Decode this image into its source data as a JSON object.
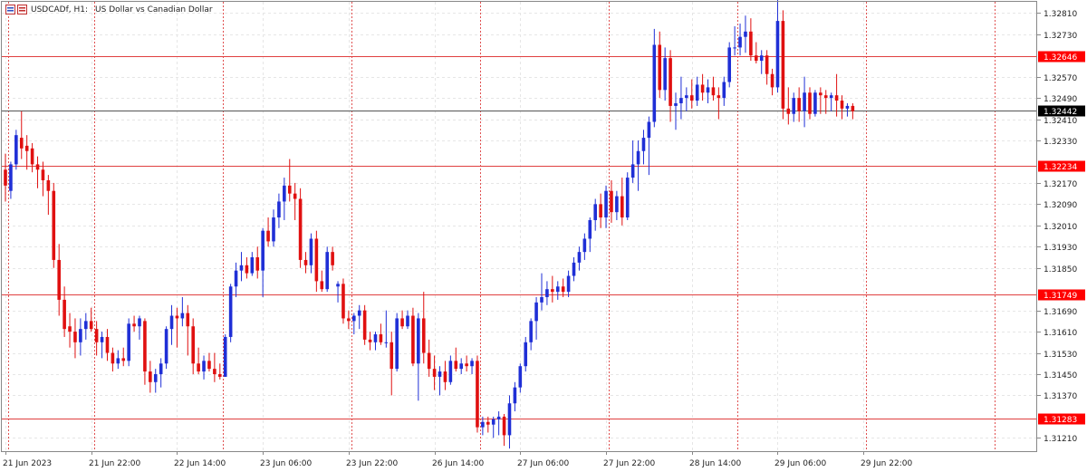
{
  "window": {
    "symbol_timeframe": "USDCADf, H1:",
    "description": "US Dollar vs Canadian Dollar"
  },
  "colors": {
    "bull": "#1f2fd6",
    "bear": "#e01010",
    "background": "#ffffff",
    "grid": "#e6e6e6",
    "frame": "#888888",
    "separator": "#e05050",
    "level_line": "#e04040",
    "level_label_bg": "#ff0000",
    "price_line": "#000000",
    "price_label_bg": "#000000",
    "text": "#222222"
  },
  "icons": {
    "chart_window": "chart-window-icon"
  },
  "chart_data": {
    "type": "candlestick",
    "title": "USDCADf, H1:  US Dollar vs Canadian Dollar",
    "ylim": [
      1.3116,
      1.32852
    ],
    "y_ticks": [
      "1.32810",
      "1.32730",
      "1.32570",
      "1.32490",
      "1.32410",
      "1.32330",
      "1.32170",
      "1.32090",
      "1.32010",
      "1.31930",
      "1.31850",
      "1.31690",
      "1.31610",
      "1.31530",
      "1.31450",
      "1.31370",
      "1.31210"
    ],
    "x_labels": [
      {
        "bar": 0,
        "label": "21 Jun 2023"
      },
      {
        "bar": 16,
        "label": "21 Jun 22:00"
      },
      {
        "bar": 32,
        "label": "22 Jun 14:00"
      },
      {
        "bar": 48,
        "label": "23 Jun 06:00"
      },
      {
        "bar": 64,
        "label": "23 Jun 22:00"
      },
      {
        "bar": 80,
        "label": "26 Jun 14:00"
      },
      {
        "bar": 96,
        "label": "27 Jun 06:00"
      },
      {
        "bar": 112,
        "label": "27 Jun 22:00"
      },
      {
        "bar": 128,
        "label": "28 Jun 14:00"
      },
      {
        "bar": 144,
        "label": "29 Jun 06:00"
      },
      {
        "bar": 160,
        "label": "29 Jun 22:00"
      }
    ],
    "separators_at_bar": [
      1,
      17,
      41,
      65,
      89,
      113,
      137,
      161,
      185
    ],
    "horizontal_levels": [
      {
        "price": 1.32646,
        "label": "1.32646"
      },
      {
        "price": 1.32234,
        "label": "1.32234"
      },
      {
        "price": 1.31749,
        "label": "1.31749"
      },
      {
        "price": 1.31283,
        "label": "1.31283"
      }
    ],
    "current_price": {
      "price": 1.32442,
      "label": "1.32442"
    },
    "candles": [
      {
        "o": 1.3222,
        "h": 1.3228,
        "l": 1.321,
        "c": 1.3216
      },
      {
        "o": 1.3214,
        "h": 1.3225,
        "l": 1.3211,
        "c": 1.3224
      },
      {
        "o": 1.3224,
        "h": 1.3237,
        "l": 1.3222,
        "c": 1.3235
      },
      {
        "o": 1.3234,
        "h": 1.3244,
        "l": 1.3226,
        "c": 1.323
      },
      {
        "o": 1.3231,
        "h": 1.3235,
        "l": 1.3222,
        "c": 1.3229
      },
      {
        "o": 1.323,
        "h": 1.3232,
        "l": 1.3221,
        "c": 1.3224
      },
      {
        "o": 1.3224,
        "h": 1.3227,
        "l": 1.3215,
        "c": 1.3222
      },
      {
        "o": 1.3222,
        "h": 1.3225,
        "l": 1.3212,
        "c": 1.3218
      },
      {
        "o": 1.3218,
        "h": 1.322,
        "l": 1.3205,
        "c": 1.3214
      },
      {
        "o": 1.3214,
        "h": 1.3217,
        "l": 1.3185,
        "c": 1.3188
      },
      {
        "o": 1.3188,
        "h": 1.3194,
        "l": 1.3167,
        "c": 1.3173
      },
      {
        "o": 1.3173,
        "h": 1.3178,
        "l": 1.3159,
        "c": 1.3162
      },
      {
        "o": 1.3163,
        "h": 1.3168,
        "l": 1.3155,
        "c": 1.3161
      },
      {
        "o": 1.3161,
        "h": 1.3166,
        "l": 1.3151,
        "c": 1.3157
      },
      {
        "o": 1.3157,
        "h": 1.3166,
        "l": 1.3152,
        "c": 1.3162
      },
      {
        "o": 1.3162,
        "h": 1.3168,
        "l": 1.3158,
        "c": 1.3165
      },
      {
        "o": 1.3165,
        "h": 1.317,
        "l": 1.3161,
        "c": 1.3162
      },
      {
        "o": 1.3162,
        "h": 1.3165,
        "l": 1.3152,
        "c": 1.3157
      },
      {
        "o": 1.3157,
        "h": 1.3161,
        "l": 1.3151,
        "c": 1.3159
      },
      {
        "o": 1.3159,
        "h": 1.3162,
        "l": 1.315,
        "c": 1.3153
      },
      {
        "o": 1.3153,
        "h": 1.3155,
        "l": 1.3146,
        "c": 1.3149
      },
      {
        "o": 1.3149,
        "h": 1.3154,
        "l": 1.3147,
        "c": 1.3151
      },
      {
        "o": 1.3151,
        "h": 1.3155,
        "l": 1.3148,
        "c": 1.315
      },
      {
        "o": 1.315,
        "h": 1.3166,
        "l": 1.3148,
        "c": 1.3164
      },
      {
        "o": 1.3164,
        "h": 1.3167,
        "l": 1.3161,
        "c": 1.3163
      },
      {
        "o": 1.3163,
        "h": 1.3167,
        "l": 1.3158,
        "c": 1.3166
      },
      {
        "o": 1.3165,
        "h": 1.3166,
        "l": 1.3141,
        "c": 1.3146
      },
      {
        "o": 1.3146,
        "h": 1.315,
        "l": 1.3138,
        "c": 1.3142
      },
      {
        "o": 1.3142,
        "h": 1.3147,
        "l": 1.3138,
        "c": 1.3145
      },
      {
        "o": 1.3145,
        "h": 1.3151,
        "l": 1.314,
        "c": 1.3149
      },
      {
        "o": 1.3149,
        "h": 1.3163,
        "l": 1.3147,
        "c": 1.3162
      },
      {
        "o": 1.3162,
        "h": 1.3171,
        "l": 1.3156,
        "c": 1.3167
      },
      {
        "o": 1.3167,
        "h": 1.317,
        "l": 1.3155,
        "c": 1.3166
      },
      {
        "o": 1.3166,
        "h": 1.3174,
        "l": 1.3163,
        "c": 1.3168
      },
      {
        "o": 1.3168,
        "h": 1.3171,
        "l": 1.3152,
        "c": 1.3163
      },
      {
        "o": 1.3163,
        "h": 1.3166,
        "l": 1.3145,
        "c": 1.3149
      },
      {
        "o": 1.3149,
        "h": 1.3155,
        "l": 1.3145,
        "c": 1.3146
      },
      {
        "o": 1.3146,
        "h": 1.3152,
        "l": 1.3143,
        "c": 1.315
      },
      {
        "o": 1.315,
        "h": 1.3153,
        "l": 1.3146,
        "c": 1.3147
      },
      {
        "o": 1.3147,
        "h": 1.3153,
        "l": 1.3142,
        "c": 1.3145
      },
      {
        "o": 1.3145,
        "h": 1.3149,
        "l": 1.3143,
        "c": 1.3144
      },
      {
        "o": 1.3144,
        "h": 1.316,
        "l": 1.3144,
        "c": 1.3159
      },
      {
        "o": 1.3159,
        "h": 1.3179,
        "l": 1.3157,
        "c": 1.3178
      },
      {
        "o": 1.3178,
        "h": 1.3187,
        "l": 1.3174,
        "c": 1.3184
      },
      {
        "o": 1.3184,
        "h": 1.3191,
        "l": 1.318,
        "c": 1.3186
      },
      {
        "o": 1.3186,
        "h": 1.3189,
        "l": 1.3181,
        "c": 1.3183
      },
      {
        "o": 1.3183,
        "h": 1.3191,
        "l": 1.3182,
        "c": 1.3189
      },
      {
        "o": 1.3189,
        "h": 1.3193,
        "l": 1.3181,
        "c": 1.3184
      },
      {
        "o": 1.3184,
        "h": 1.32,
        "l": 1.3174,
        "c": 1.3199
      },
      {
        "o": 1.3199,
        "h": 1.3204,
        "l": 1.3193,
        "c": 1.3195
      },
      {
        "o": 1.3195,
        "h": 1.3207,
        "l": 1.3193,
        "c": 1.3204
      },
      {
        "o": 1.3204,
        "h": 1.3213,
        "l": 1.32,
        "c": 1.321
      },
      {
        "o": 1.321,
        "h": 1.3219,
        "l": 1.3203,
        "c": 1.3216
      },
      {
        "o": 1.3216,
        "h": 1.3226,
        "l": 1.321,
        "c": 1.3213
      },
      {
        "o": 1.3213,
        "h": 1.3217,
        "l": 1.3203,
        "c": 1.3211
      },
      {
        "o": 1.3211,
        "h": 1.3215,
        "l": 1.3185,
        "c": 1.3188
      },
      {
        "o": 1.3188,
        "h": 1.3191,
        "l": 1.3183,
        "c": 1.3186
      },
      {
        "o": 1.3186,
        "h": 1.3198,
        "l": 1.3183,
        "c": 1.3196
      },
      {
        "o": 1.3196,
        "h": 1.3199,
        "l": 1.3176,
        "c": 1.318
      },
      {
        "o": 1.318,
        "h": 1.3184,
        "l": 1.3176,
        "c": 1.3177
      },
      {
        "o": 1.3177,
        "h": 1.3193,
        "l": 1.3176,
        "c": 1.3191
      },
      {
        "o": 1.3191,
        "h": 1.3193,
        "l": 1.3184,
        "c": 1.3186
      },
      {
        "o": 1.3178,
        "h": 1.318,
        "l": 1.3172,
        "c": 1.3179
      },
      {
        "o": 1.3179,
        "h": 1.3181,
        "l": 1.3164,
        "c": 1.3166
      },
      {
        "o": 1.3166,
        "h": 1.3169,
        "l": 1.3162,
        "c": 1.3165
      },
      {
        "o": 1.3165,
        "h": 1.3168,
        "l": 1.316,
        "c": 1.3167
      },
      {
        "o": 1.3167,
        "h": 1.3171,
        "l": 1.3162,
        "c": 1.3169
      },
      {
        "o": 1.3169,
        "h": 1.3171,
        "l": 1.3156,
        "c": 1.3158
      },
      {
        "o": 1.3158,
        "h": 1.3161,
        "l": 1.3154,
        "c": 1.3157
      },
      {
        "o": 1.3157,
        "h": 1.3161,
        "l": 1.3154,
        "c": 1.316
      },
      {
        "o": 1.316,
        "h": 1.3164,
        "l": 1.3156,
        "c": 1.3157
      },
      {
        "o": 1.3157,
        "h": 1.3169,
        "l": 1.3155,
        "c": 1.3157
      },
      {
        "o": 1.3157,
        "h": 1.3161,
        "l": 1.3137,
        "c": 1.3147
      },
      {
        "o": 1.3147,
        "h": 1.3168,
        "l": 1.3146,
        "c": 1.3166
      },
      {
        "o": 1.3166,
        "h": 1.3169,
        "l": 1.3162,
        "c": 1.3163
      },
      {
        "o": 1.3163,
        "h": 1.3169,
        "l": 1.3162,
        "c": 1.3167
      },
      {
        "o": 1.3167,
        "h": 1.317,
        "l": 1.3148,
        "c": 1.3149
      },
      {
        "o": 1.3149,
        "h": 1.3168,
        "l": 1.3135,
        "c": 1.3166
      },
      {
        "o": 1.3166,
        "h": 1.3176,
        "l": 1.3149,
        "c": 1.3153
      },
      {
        "o": 1.3153,
        "h": 1.3158,
        "l": 1.3144,
        "c": 1.3147
      },
      {
        "o": 1.3147,
        "h": 1.3152,
        "l": 1.3139,
        "c": 1.3144
      },
      {
        "o": 1.3144,
        "h": 1.3148,
        "l": 1.3137,
        "c": 1.3146
      },
      {
        "o": 1.3146,
        "h": 1.315,
        "l": 1.3139,
        "c": 1.3142
      },
      {
        "o": 1.3142,
        "h": 1.3152,
        "l": 1.3141,
        "c": 1.315
      },
      {
        "o": 1.315,
        "h": 1.3155,
        "l": 1.3146,
        "c": 1.3147
      },
      {
        "o": 1.3147,
        "h": 1.3151,
        "l": 1.3145,
        "c": 1.3149
      },
      {
        "o": 1.3149,
        "h": 1.3152,
        "l": 1.3146,
        "c": 1.3148
      },
      {
        "o": 1.3148,
        "h": 1.3151,
        "l": 1.3145,
        "c": 1.315
      },
      {
        "o": 1.315,
        "h": 1.3152,
        "l": 1.3123,
        "c": 1.3125
      },
      {
        "o": 1.3125,
        "h": 1.3129,
        "l": 1.3122,
        "c": 1.3127
      },
      {
        "o": 1.3127,
        "h": 1.3129,
        "l": 1.3123,
        "c": 1.3126
      },
      {
        "o": 1.3126,
        "h": 1.3129,
        "l": 1.3121,
        "c": 1.3128
      },
      {
        "o": 1.3128,
        "h": 1.3131,
        "l": 1.3122,
        "c": 1.3129
      },
      {
        "o": 1.3129,
        "h": 1.313,
        "l": 1.3118,
        "c": 1.3122
      },
      {
        "o": 1.3122,
        "h": 1.3137,
        "l": 1.3117,
        "c": 1.3134
      },
      {
        "o": 1.3134,
        "h": 1.3142,
        "l": 1.3131,
        "c": 1.314
      },
      {
        "o": 1.314,
        "h": 1.3149,
        "l": 1.3138,
        "c": 1.3148
      },
      {
        "o": 1.3148,
        "h": 1.3159,
        "l": 1.3146,
        "c": 1.3157
      },
      {
        "o": 1.3157,
        "h": 1.3166,
        "l": 1.3154,
        "c": 1.3165
      },
      {
        "o": 1.3165,
        "h": 1.3174,
        "l": 1.3158,
        "c": 1.3172
      },
      {
        "o": 1.3172,
        "h": 1.3183,
        "l": 1.3169,
        "c": 1.3174
      },
      {
        "o": 1.3174,
        "h": 1.318,
        "l": 1.3171,
        "c": 1.3177
      },
      {
        "o": 1.3177,
        "h": 1.3182,
        "l": 1.3172,
        "c": 1.3176
      },
      {
        "o": 1.3176,
        "h": 1.318,
        "l": 1.3173,
        "c": 1.3178
      },
      {
        "o": 1.3178,
        "h": 1.3181,
        "l": 1.3174,
        "c": 1.3176
      },
      {
        "o": 1.3176,
        "h": 1.3184,
        "l": 1.3174,
        "c": 1.3182
      },
      {
        "o": 1.3182,
        "h": 1.3189,
        "l": 1.318,
        "c": 1.3187
      },
      {
        "o": 1.3187,
        "h": 1.3193,
        "l": 1.3184,
        "c": 1.3191
      },
      {
        "o": 1.3191,
        "h": 1.3198,
        "l": 1.3188,
        "c": 1.3196
      },
      {
        "o": 1.3196,
        "h": 1.3204,
        "l": 1.3191,
        "c": 1.3203
      },
      {
        "o": 1.3203,
        "h": 1.3211,
        "l": 1.3199,
        "c": 1.3209
      },
      {
        "o": 1.3209,
        "h": 1.3213,
        "l": 1.32,
        "c": 1.3204
      },
      {
        "o": 1.3204,
        "h": 1.3216,
        "l": 1.32,
        "c": 1.3214
      },
      {
        "o": 1.3214,
        "h": 1.3218,
        "l": 1.3202,
        "c": 1.3206
      },
      {
        "o": 1.3206,
        "h": 1.3214,
        "l": 1.3203,
        "c": 1.3212
      },
      {
        "o": 1.3212,
        "h": 1.3219,
        "l": 1.3201,
        "c": 1.3204
      },
      {
        "o": 1.3204,
        "h": 1.3221,
        "l": 1.3203,
        "c": 1.3219
      },
      {
        "o": 1.3219,
        "h": 1.3233,
        "l": 1.3217,
        "c": 1.3224
      },
      {
        "o": 1.3224,
        "h": 1.3233,
        "l": 1.3214,
        "c": 1.3229
      },
      {
        "o": 1.3229,
        "h": 1.3237,
        "l": 1.3224,
        "c": 1.3234
      },
      {
        "o": 1.3234,
        "h": 1.3242,
        "l": 1.322,
        "c": 1.324
      },
      {
        "o": 1.324,
        "h": 1.3275,
        "l": 1.3238,
        "c": 1.3269
      },
      {
        "o": 1.3269,
        "h": 1.3274,
        "l": 1.3249,
        "c": 1.3252
      },
      {
        "o": 1.3252,
        "h": 1.3268,
        "l": 1.3248,
        "c": 1.3264
      },
      {
        "o": 1.3264,
        "h": 1.3267,
        "l": 1.324,
        "c": 1.3246
      },
      {
        "o": 1.3246,
        "h": 1.3251,
        "l": 1.3237,
        "c": 1.3247
      },
      {
        "o": 1.3247,
        "h": 1.3257,
        "l": 1.3241,
        "c": 1.3249
      },
      {
        "o": 1.3249,
        "h": 1.3253,
        "l": 1.3244,
        "c": 1.325
      },
      {
        "o": 1.325,
        "h": 1.3256,
        "l": 1.3245,
        "c": 1.3248
      },
      {
        "o": 1.3248,
        "h": 1.3257,
        "l": 1.3246,
        "c": 1.3254
      },
      {
        "o": 1.3254,
        "h": 1.3258,
        "l": 1.3248,
        "c": 1.3251
      },
      {
        "o": 1.3251,
        "h": 1.3256,
        "l": 1.3247,
        "c": 1.3253
      },
      {
        "o": 1.3253,
        "h": 1.3257,
        "l": 1.3248,
        "c": 1.325
      },
      {
        "o": 1.325,
        "h": 1.3253,
        "l": 1.3241,
        "c": 1.3249
      },
      {
        "o": 1.3249,
        "h": 1.3257,
        "l": 1.3246,
        "c": 1.3255
      },
      {
        "o": 1.3255,
        "h": 1.327,
        "l": 1.3253,
        "c": 1.3268
      },
      {
        "o": 1.3268,
        "h": 1.3276,
        "l": 1.3265,
        "c": 1.3268
      },
      {
        "o": 1.3268,
        "h": 1.3277,
        "l": 1.3265,
        "c": 1.3272
      },
      {
        "o": 1.3272,
        "h": 1.328,
        "l": 1.3266,
        "c": 1.3274
      },
      {
        "o": 1.3274,
        "h": 1.3279,
        "l": 1.3263,
        "c": 1.3265
      },
      {
        "o": 1.3265,
        "h": 1.327,
        "l": 1.3262,
        "c": 1.3263
      },
      {
        "o": 1.3263,
        "h": 1.3267,
        "l": 1.3258,
        "c": 1.3265
      },
      {
        "o": 1.3265,
        "h": 1.3267,
        "l": 1.3254,
        "c": 1.3258
      },
      {
        "o": 1.3258,
        "h": 1.326,
        "l": 1.325,
        "c": 1.3253
      },
      {
        "o": 1.3253,
        "h": 1.3286,
        "l": 1.3251,
        "c": 1.3278
      },
      {
        "o": 1.3278,
        "h": 1.3282,
        "l": 1.3241,
        "c": 1.3245
      },
      {
        "o": 1.3245,
        "h": 1.3253,
        "l": 1.3239,
        "c": 1.3243
      },
      {
        "o": 1.3243,
        "h": 1.3251,
        "l": 1.324,
        "c": 1.3249
      },
      {
        "o": 1.3249,
        "h": 1.3253,
        "l": 1.324,
        "c": 1.3244
      },
      {
        "o": 1.3244,
        "h": 1.3257,
        "l": 1.3238,
        "c": 1.3251
      },
      {
        "o": 1.3251,
        "h": 1.3253,
        "l": 1.3241,
        "c": 1.3243
      },
      {
        "o": 1.3243,
        "h": 1.3252,
        "l": 1.3242,
        "c": 1.3251
      },
      {
        "o": 1.3251,
        "h": 1.3253,
        "l": 1.3243,
        "c": 1.325
      },
      {
        "o": 1.325,
        "h": 1.3252,
        "l": 1.3243,
        "c": 1.3249
      },
      {
        "o": 1.3249,
        "h": 1.3251,
        "l": 1.3244,
        "c": 1.325
      },
      {
        "o": 1.325,
        "h": 1.3258,
        "l": 1.3242,
        "c": 1.3248
      },
      {
        "o": 1.3248,
        "h": 1.325,
        "l": 1.3241,
        "c": 1.3245
      },
      {
        "o": 1.3245,
        "h": 1.3247,
        "l": 1.3242,
        "c": 1.3246
      },
      {
        "o": 1.3246,
        "h": 1.3247,
        "l": 1.3241,
        "c": 1.3244
      }
    ]
  }
}
